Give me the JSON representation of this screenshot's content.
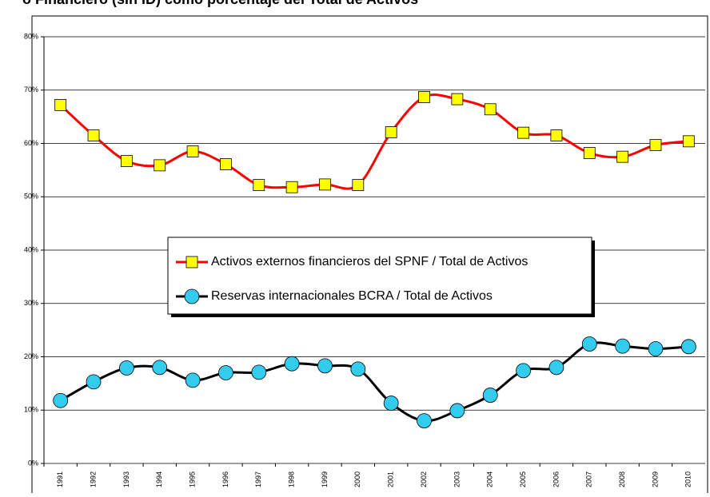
{
  "chart_data": {
    "type": "line",
    "title": "o Financiero (sin ID) como porcentaje del Total de Activos",
    "categories": [
      "1991",
      "1992",
      "1993",
      "1994",
      "1995",
      "1996",
      "1997",
      "1998",
      "1999",
      "2000",
      "2001",
      "2002",
      "2003",
      "2004",
      "2005",
      "2006",
      "2007",
      "2008",
      "2009",
      "2010"
    ],
    "series": [
      {
        "name": "Activos externos financieros del SPNF / Total de Activos",
        "color": "#ff0000",
        "marker": "square",
        "marker_color": "#ffff00",
        "values": [
          67.2,
          61.5,
          56.7,
          55.9,
          58.5,
          56.1,
          52.2,
          51.8,
          52.3,
          52.2,
          62.1,
          68.7,
          68.3,
          66.4,
          62.0,
          61.5,
          58.2,
          57.5,
          59.7,
          60.4
        ]
      },
      {
        "name": "Reservas internacionales BCRA / Total de Activos",
        "color": "#000000",
        "marker": "circle",
        "marker_color": "#33ccee",
        "values": [
          11.8,
          15.3,
          17.9,
          18.0,
          15.6,
          17.0,
          17.1,
          18.7,
          18.3,
          17.7,
          11.3,
          8.0,
          9.9,
          12.8,
          17.4,
          18.0,
          22.4,
          22.0,
          21.5,
          21.9
        ]
      }
    ],
    "ylim": [
      0,
      80
    ],
    "yticks": [
      {
        "value": 0,
        "label": "0%"
      },
      {
        "value": 10,
        "label": "10%"
      },
      {
        "value": 20,
        "label": "20%"
      },
      {
        "value": 30,
        "label": "30%"
      },
      {
        "value": 40,
        "label": "40%"
      },
      {
        "value": 50,
        "label": "50%"
      },
      {
        "value": 60,
        "label": "60%"
      },
      {
        "value": 70,
        "label": "70%"
      },
      {
        "value": 80,
        "label": "80%"
      }
    ],
    "grid": true,
    "smooth": true,
    "legend": "center"
  }
}
